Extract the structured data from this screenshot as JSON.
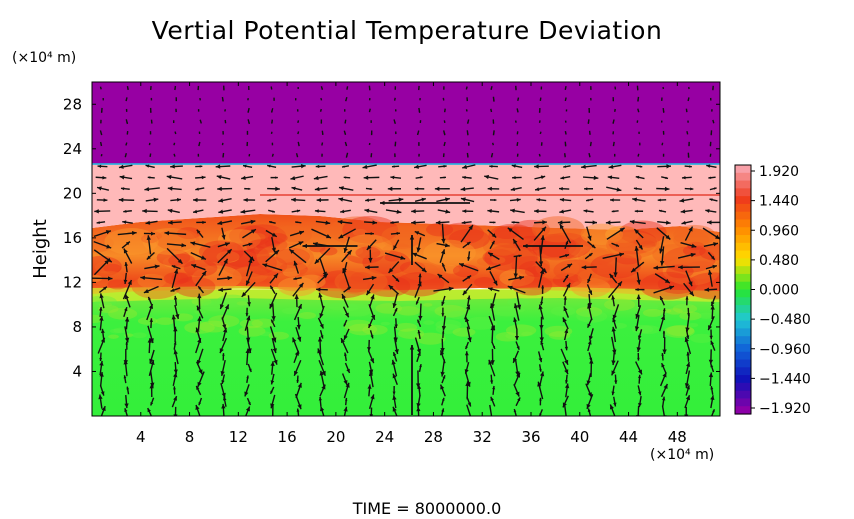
{
  "chart_data": {
    "type": "heatmap",
    "title": "Vertial Potential Temperature Deviation",
    "ylabel": "Height",
    "x_unit": "(×10⁴ m)",
    "y_unit": "(×10⁴ m)",
    "footer": "TIME  =  8000000.0",
    "xlim": [
      0,
      51.5
    ],
    "ylim": [
      0,
      30
    ],
    "x_ticks": [
      4,
      8,
      12,
      16,
      20,
      24,
      28,
      32,
      36,
      40,
      44,
      48
    ],
    "y_ticks": [
      4,
      8,
      12,
      16,
      20,
      24,
      28
    ],
    "colorbar": {
      "ticks": [
        "1.920",
        "1.440",
        "0.960",
        "0.480",
        "0.000",
        "−0.480",
        "−0.960",
        "−1.440",
        "−1.920"
      ],
      "range": [
        -1.92,
        1.92
      ],
      "colors": [
        "#f8a0a8",
        "#ee3a1c",
        "#ff8c00",
        "#ffe000",
        "#27e62d",
        "#20c7d6",
        "#1060d8",
        "#1010b8",
        "#8c00a8"
      ]
    },
    "layers": [
      {
        "name": "upper",
        "y_range": [
          22.6,
          30
        ],
        "value": -1.92,
        "color": "#9700a3"
      },
      {
        "name": "pink",
        "y_range": [
          16.5,
          22.6
        ],
        "value": 1.92,
        "color": "#ffb9b9"
      },
      {
        "name": "orange",
        "y_range": [
          10.8,
          16.5
        ],
        "value": 1.4,
        "color": "#f46a1c"
      },
      {
        "name": "yellow",
        "y_range": [
          10.2,
          11.3
        ],
        "value": 0.5,
        "color": "#c8ee2a"
      },
      {
        "name": "green",
        "y_range": [
          0,
          10.2
        ],
        "value": 0.1,
        "color": "#38ef3c"
      }
    ],
    "vectors": "wind arrows overlaid on the field",
    "grid": false,
    "legend": "colorbar right"
  }
}
